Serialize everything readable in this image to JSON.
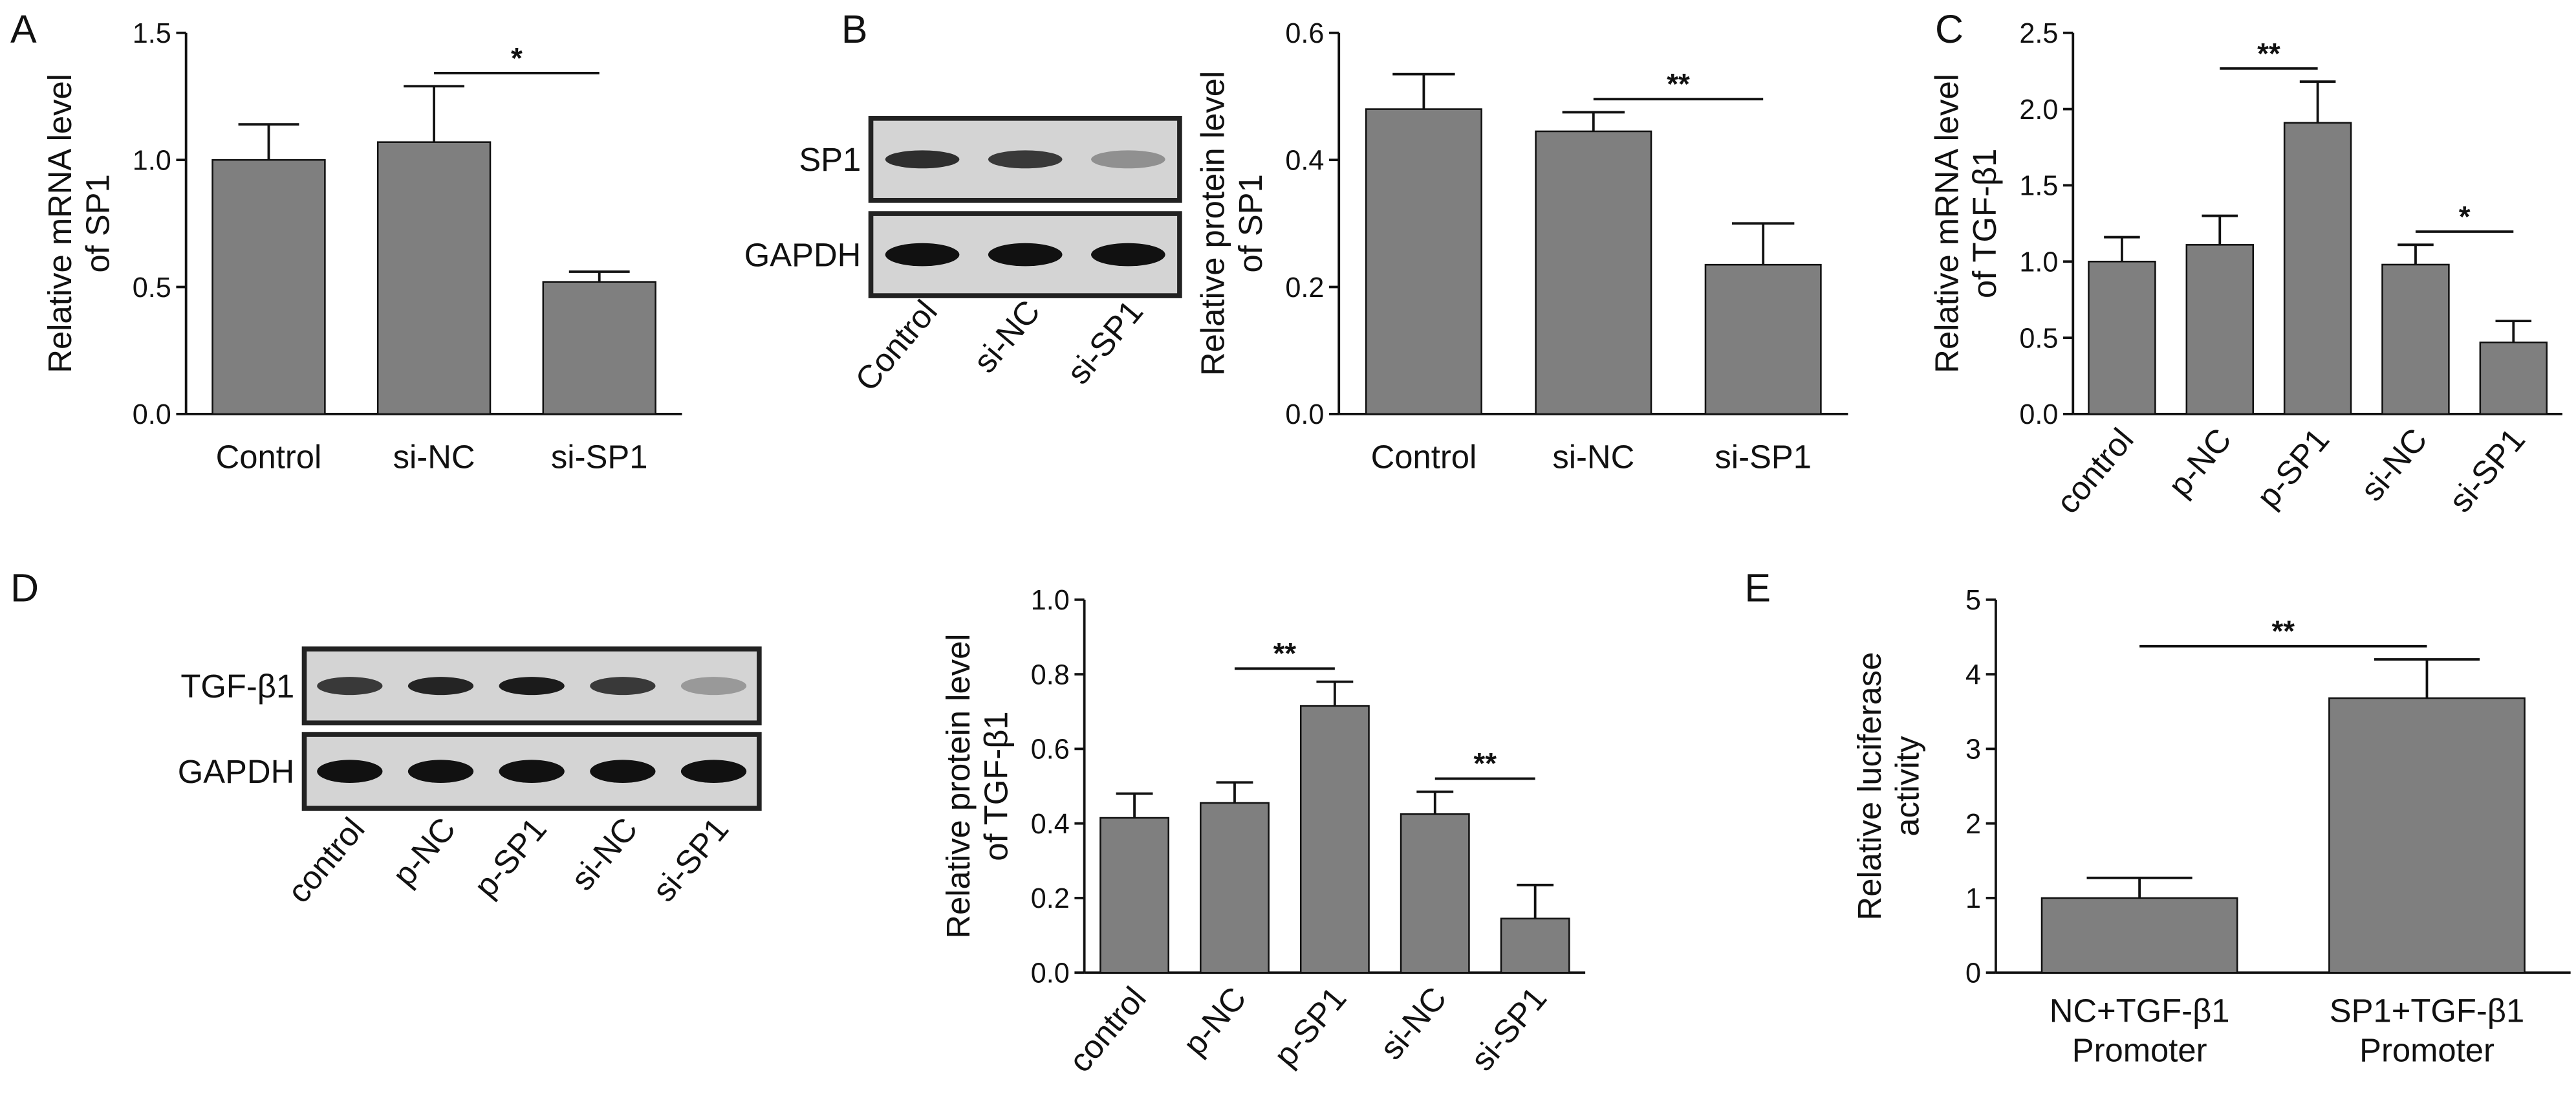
{
  "panel_labels": [
    "A",
    "B",
    "C",
    "D",
    "E"
  ],
  "blots": [
    {
      "rows": [
        "SP1",
        "GAPDH"
      ],
      "lanes": [
        "Control",
        "si-NC",
        "si-SP1"
      ]
    },
    {
      "rows": [
        "TGF-β1",
        "GAPDH"
      ],
      "lanes": [
        "control",
        "p-NC",
        "p-SP1",
        "si-NC",
        "si-SP1"
      ]
    }
  ],
  "chart_data": [
    {
      "type": "bar",
      "ylabel": [
        "Relative mRNA level",
        "of SP1"
      ],
      "categories": [
        "Control",
        "si-NC",
        "si-SP1"
      ],
      "values": [
        1.0,
        1.07,
        0.52
      ],
      "errors": [
        0.14,
        0.22,
        0.04
      ],
      "color": "#7f7f7f",
      "ylim": [
        0,
        1.5
      ],
      "yticks": [
        {
          "value": 0,
          "label": "0.0"
        },
        0.5,
        {
          "value": 1,
          "label": "1.0"
        },
        1.5
      ],
      "significance": [
        {
          "text": "*",
          "between": [
            "si-NC",
            "si-SP1"
          ]
        }
      ]
    },
    {
      "type": "bar",
      "ylabel": [
        "Relative protein level",
        "of SP1"
      ],
      "categories": [
        "Control",
        "si-NC",
        "si-SP1"
      ],
      "values": [
        0.48,
        0.445,
        0.235
      ],
      "errors": [
        0.055,
        0.03,
        0.065
      ],
      "color": "#7f7f7f",
      "ylim": [
        0,
        0.6
      ],
      "yticks": [
        {
          "value": 0,
          "label": "0.0"
        },
        0.2,
        0.4,
        0.6
      ],
      "significance": [
        {
          "text": "**",
          "between": [
            "si-NC",
            "si-SP1"
          ]
        }
      ]
    },
    {
      "type": "bar",
      "ylabel": [
        "Relative mRNA level",
        "of TGF-β1"
      ],
      "categories": [
        "control",
        "p-NC",
        "p-SP1",
        "si-NC",
        "si-SP1"
      ],
      "values": [
        1.0,
        1.11,
        1.91,
        0.98,
        0.47
      ],
      "errors": [
        0.16,
        0.19,
        0.27,
        0.13,
        0.14
      ],
      "color": "#7f7f7f",
      "ylim": [
        0,
        2.5
      ],
      "yticks": [
        {
          "value": 0,
          "label": "0.0"
        },
        0.5,
        {
          "value": 1,
          "label": "1.0"
        },
        1.5,
        {
          "value": 2,
          "label": "2.0"
        },
        2.5
      ],
      "significance": [
        {
          "text": "**",
          "between": [
            "p-NC",
            "p-SP1"
          ]
        },
        {
          "text": "*",
          "between": [
            "si-NC",
            "si-SP1"
          ]
        }
      ]
    },
    {
      "type": "bar",
      "ylabel": [
        "Relative protein level",
        "of TGF-β1"
      ],
      "categories": [
        "control",
        "p-NC",
        "p-SP1",
        "si-NC",
        "si-SP1"
      ],
      "values": [
        0.415,
        0.455,
        0.715,
        0.425,
        0.145
      ],
      "errors": [
        0.065,
        0.055,
        0.065,
        0.06,
        0.09
      ],
      "color": "#7f7f7f",
      "ylim": [
        0,
        1
      ],
      "yticks": [
        {
          "value": 0,
          "label": "0.0"
        },
        0.2,
        0.4,
        0.6,
        0.8,
        {
          "value": 1,
          "label": "1.0"
        }
      ],
      "significance": [
        {
          "text": "**",
          "between": [
            "p-NC",
            "p-SP1"
          ]
        },
        {
          "text": "**",
          "between": [
            "si-NC",
            "si-SP1"
          ]
        }
      ]
    },
    {
      "type": "bar",
      "ylabel": [
        "Relative luciferase",
        "activity"
      ],
      "categories": [
        [
          "NC+TGF-β1",
          "Promoter"
        ],
        [
          "SP1+TGF-β1",
          "Promoter"
        ]
      ],
      "values": [
        1.0,
        3.68
      ],
      "errors": [
        0.27,
        0.52
      ],
      "color": "#7f7f7f",
      "ylim": [
        0,
        5
      ],
      "yticks": [
        0,
        1,
        2,
        3,
        4,
        5
      ],
      "significance": [
        {
          "text": "**",
          "between": [
            0,
            1
          ]
        }
      ]
    }
  ]
}
